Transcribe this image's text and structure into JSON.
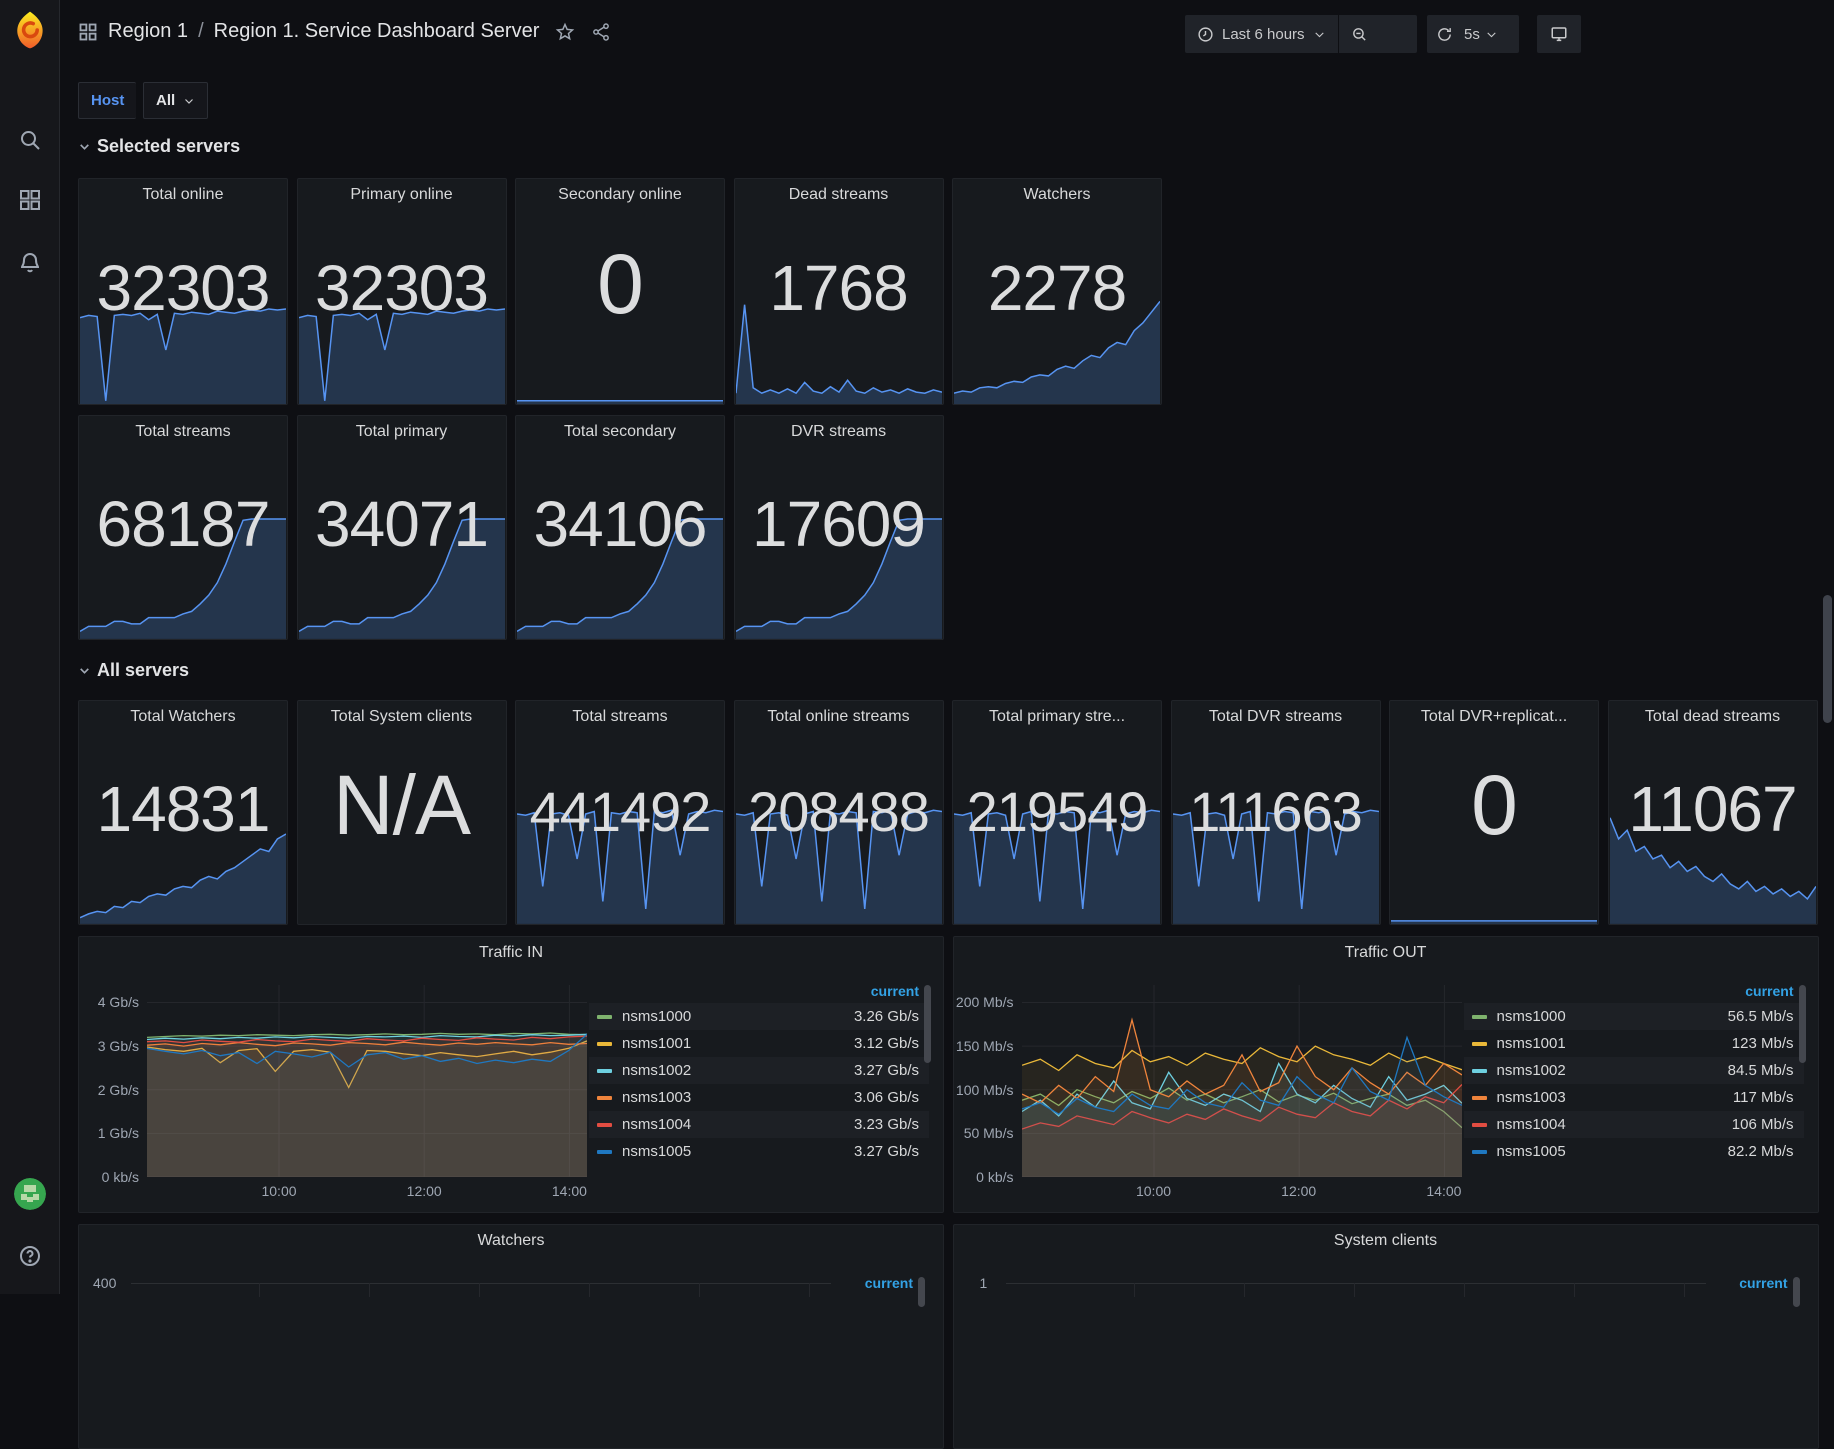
{
  "colors": {
    "accent_blue": "#5794f2",
    "legend_header_blue": "#33a2e5",
    "spark_line": "#5794f2",
    "avatar_green": "#36a64f"
  },
  "sidebar": {
    "items": [
      {
        "icon": "search"
      },
      {
        "icon": "dashboards"
      },
      {
        "icon": "alerting"
      }
    ]
  },
  "header": {
    "breadcrumb_folder": "Region 1",
    "breadcrumb_sep": "/",
    "breadcrumb_title": "Region 1. Service Dashboard Server",
    "time_range": "Last 6 hours",
    "refresh_interval": "5s"
  },
  "filters": {
    "host_label": "Host",
    "host_value": "All"
  },
  "sections": {
    "selected": "Selected servers",
    "all": "All servers"
  },
  "sparklines": {
    "plateau_dip": [
      0.8,
      0.82,
      0.81,
      0.03,
      0.82,
      0.83,
      0.82,
      0.84,
      0.78,
      0.83,
      0.5,
      0.84,
      0.83,
      0.85,
      0.84,
      0.83,
      0.86,
      0.85,
      0.84,
      0.86,
      0.87,
      0.86,
      0.88,
      0.87,
      0.88
    ],
    "flat_low": [
      0.03,
      0.03,
      0.03,
      0.03,
      0.03,
      0.03,
      0.03,
      0.03,
      0.03,
      0.03,
      0.03,
      0.03,
      0.03,
      0.03,
      0.03,
      0.03,
      0.03,
      0.03,
      0.03,
      0.03,
      0.03,
      0.03,
      0.03,
      0.03,
      0.03
    ],
    "spike_early": [
      0.1,
      0.92,
      0.15,
      0.1,
      0.13,
      0.1,
      0.14,
      0.1,
      0.2,
      0.12,
      0.1,
      0.16,
      0.11,
      0.22,
      0.12,
      0.1,
      0.15,
      0.11,
      0.13,
      0.1,
      0.14,
      0.11,
      0.1,
      0.13,
      0.11
    ],
    "rise": [
      0.1,
      0.12,
      0.11,
      0.15,
      0.16,
      0.15,
      0.19,
      0.21,
      0.2,
      0.25,
      0.27,
      0.26,
      0.32,
      0.35,
      0.33,
      0.4,
      0.45,
      0.43,
      0.52,
      0.57,
      0.55,
      0.68,
      0.75,
      0.85,
      0.95
    ],
    "staircase": [
      0.06,
      0.1,
      0.1,
      0.1,
      0.14,
      0.14,
      0.12,
      0.12,
      0.17,
      0.17,
      0.17,
      0.17,
      0.2,
      0.22,
      0.28,
      0.35,
      0.45,
      0.6,
      0.78,
      0.95,
      0.96,
      0.96,
      0.96,
      0.96,
      0.96
    ],
    "rise_noisy": [
      0.05,
      0.08,
      0.1,
      0.09,
      0.14,
      0.13,
      0.18,
      0.17,
      0.22,
      0.24,
      0.23,
      0.28,
      0.3,
      0.29,
      0.35,
      0.38,
      0.36,
      0.42,
      0.45,
      0.5,
      0.55,
      0.6,
      0.58,
      0.68,
      0.72
    ],
    "plateau_spikes": [
      0.88,
      0.87,
      0.89,
      0.3,
      0.88,
      0.89,
      0.87,
      0.52,
      0.88,
      0.9,
      0.18,
      0.89,
      0.88,
      0.9,
      0.89,
      0.12,
      0.9,
      0.89,
      0.91,
      0.55,
      0.88,
      0.9,
      0.89,
      0.91,
      0.9
    ],
    "decline": [
      0.85,
      0.68,
      0.75,
      0.58,
      0.62,
      0.52,
      0.55,
      0.45,
      0.5,
      0.42,
      0.46,
      0.38,
      0.34,
      0.4,
      0.32,
      0.28,
      0.34,
      0.26,
      0.3,
      0.24,
      0.28,
      0.22,
      0.26,
      0.2,
      0.3
    ]
  },
  "stats": {
    "selected_row1": [
      {
        "title": "Total online",
        "value": "32303"
      },
      {
        "title": "Primary online",
        "value": "32303"
      },
      {
        "title": "Secondary online",
        "value": "0"
      },
      {
        "title": "Dead streams",
        "value": "1768"
      },
      {
        "title": "Watchers",
        "value": "2278"
      }
    ],
    "selected_row2": [
      {
        "title": "Total streams",
        "value": "68187"
      },
      {
        "title": "Total primary",
        "value": "34071"
      },
      {
        "title": "Total secondary",
        "value": "34106"
      },
      {
        "title": "DVR streams",
        "value": "17609"
      }
    ],
    "all_row": [
      {
        "title": "Total Watchers",
        "value": "14831"
      },
      {
        "title": "Total System clients",
        "value": "N/A"
      },
      {
        "title": "Total streams",
        "value": "441492"
      },
      {
        "title": "Total online streams",
        "value": "208488"
      },
      {
        "title": "Total primary stre...",
        "value": "219549"
      },
      {
        "title": "Total DVR streams",
        "value": "111663"
      },
      {
        "title": "Total DVR+replicat...",
        "value": "0"
      },
      {
        "title": "Total dead streams",
        "value": "11067"
      }
    ]
  },
  "chart_data": [
    {
      "type": "line",
      "title": "Traffic IN",
      "legend_header": "current",
      "ylim": [
        0,
        4.4
      ],
      "y_ticks": [
        {
          "label": "4 Gb/s",
          "v": 4
        },
        {
          "label": "3 Gb/s",
          "v": 3
        },
        {
          "label": "2 Gb/s",
          "v": 2
        },
        {
          "label": "1 Gb/s",
          "v": 1
        },
        {
          "label": "0 kb/s",
          "v": 0
        }
      ],
      "x_ticks": [
        "10:00",
        "12:00",
        "14:00"
      ],
      "x_tick_pos": [
        0.3,
        0.63,
        0.96
      ],
      "series": [
        {
          "name": "nsms1000",
          "color": "#7EB26D",
          "current": "3.26 Gb/s",
          "values": [
            3.2,
            3.22,
            3.24,
            3.23,
            3.25,
            3.24,
            3.26,
            3.25,
            3.24,
            3.26,
            3.27,
            3.25,
            3.26,
            3.28,
            3.26,
            3.27,
            3.29,
            3.27,
            3.28,
            3.26,
            3.29,
            3.28,
            3.3,
            3.27,
            3.26
          ]
        },
        {
          "name": "nsms1001",
          "color": "#EAB839",
          "current": "3.12 Gb/s",
          "values": [
            2.98,
            2.92,
            2.88,
            2.95,
            2.62,
            2.9,
            2.94,
            2.42,
            2.88,
            2.92,
            2.86,
            2.05,
            2.9,
            2.88,
            2.82,
            2.78,
            2.85,
            2.8,
            2.76,
            2.82,
            2.88,
            2.8,
            2.86,
            2.95,
            3.12
          ]
        },
        {
          "name": "nsms1002",
          "color": "#6ED0E0",
          "current": "3.27 Gb/s",
          "values": [
            3.15,
            3.18,
            3.16,
            3.19,
            3.17,
            3.2,
            3.18,
            3.21,
            3.19,
            3.22,
            3.2,
            3.18,
            3.22,
            3.21,
            3.23,
            3.2,
            3.24,
            3.22,
            3.21,
            3.25,
            3.23,
            3.26,
            3.24,
            3.25,
            3.27
          ]
        },
        {
          "name": "nsms1003",
          "color": "#EF843C",
          "current": "3.06 Gb/s",
          "values": [
            3.02,
            3.05,
            3.0,
            3.06,
            3.03,
            3.08,
            3.04,
            3.01,
            3.07,
            3.05,
            3.02,
            3.08,
            3.06,
            3.03,
            3.09,
            3.05,
            3.02,
            3.07,
            3.04,
            3.08,
            3.05,
            3.03,
            3.08,
            3.04,
            3.06
          ]
        },
        {
          "name": "nsms1004",
          "color": "#E24D42",
          "current": "3.23 Gb/s",
          "values": [
            3.1,
            3.12,
            3.08,
            3.14,
            3.11,
            3.09,
            3.15,
            3.12,
            3.1,
            3.16,
            3.13,
            3.11,
            3.17,
            3.14,
            3.12,
            3.18,
            3.15,
            3.13,
            3.19,
            3.16,
            3.14,
            3.2,
            3.17,
            3.21,
            3.23
          ]
        },
        {
          "name": "nsms1005",
          "color": "#1F78C1",
          "current": "3.27 Gb/s",
          "values": [
            2.95,
            2.88,
            2.82,
            2.9,
            2.78,
            2.85,
            2.6,
            2.88,
            2.82,
            2.75,
            2.86,
            2.52,
            2.8,
            2.85,
            2.7,
            2.78,
            2.65,
            2.72,
            2.6,
            2.68,
            2.62,
            2.7,
            2.65,
            2.9,
            3.27
          ]
        }
      ]
    },
    {
      "type": "line",
      "title": "Traffic OUT",
      "legend_header": "current",
      "ylim": [
        0,
        220
      ],
      "y_ticks": [
        {
          "label": "200 Mb/s",
          "v": 200
        },
        {
          "label": "150 Mb/s",
          "v": 150
        },
        {
          "label": "100 Mb/s",
          "v": 100
        },
        {
          "label": "50 Mb/s",
          "v": 50
        },
        {
          "label": "0 kb/s",
          "v": 0
        }
      ],
      "x_ticks": [
        "10:00",
        "12:00",
        "14:00"
      ],
      "x_tick_pos": [
        0.3,
        0.63,
        0.96
      ],
      "series": [
        {
          "name": "nsms1000",
          "color": "#7EB26D",
          "current": "56.5 Mb/s",
          "values": [
            88,
            95,
            82,
            100,
            92,
            85,
            98,
            90,
            102,
            88,
            95,
            85,
            92,
            100,
            86,
            94,
            88,
            96,
            84,
            90,
            95,
            82,
            88,
            75,
            56.5
          ]
        },
        {
          "name": "nsms1001",
          "color": "#EAB839",
          "current": "123 Mb/s",
          "values": [
            128,
            135,
            122,
            140,
            130,
            125,
            145,
            132,
            138,
            128,
            142,
            135,
            130,
            148,
            138,
            132,
            150,
            140,
            135,
            128,
            142,
            132,
            138,
            130,
            123
          ]
        },
        {
          "name": "nsms1002",
          "color": "#6ED0E0",
          "current": "84.5 Mb/s",
          "values": [
            75,
            88,
            70,
            95,
            80,
            110,
            85,
            78,
            120,
            90,
            82,
            95,
            88,
            75,
            130,
            95,
            85,
            105,
            90,
            80,
            115,
            88,
            95,
            105,
            84.5
          ]
        },
        {
          "name": "nsms1003",
          "color": "#EF843C",
          "current": "117 Mb/s",
          "values": [
            95,
            85,
            105,
            90,
            115,
            98,
            180,
            100,
            92,
            110,
            95,
            105,
            140,
            98,
            108,
            150,
            115,
            100,
            125,
            108,
            95,
            120,
            105,
            130,
            117
          ]
        },
        {
          "name": "nsms1004",
          "color": "#E24D42",
          "current": "106 Mb/s",
          "values": [
            55,
            62,
            58,
            70,
            65,
            60,
            75,
            68,
            62,
            72,
            66,
            78,
            70,
            64,
            80,
            72,
            68,
            85,
            75,
            70,
            88,
            78,
            92,
            85,
            106
          ]
        },
        {
          "name": "nsms1005",
          "color": "#1F78C1",
          "current": "82.2 Mb/s",
          "values": [
            78,
            85,
            72,
            90,
            80,
            75,
            95,
            82,
            78,
            100,
            85,
            80,
            108,
            88,
            82,
            115,
            95,
            85,
            125,
            98,
            88,
            160,
            105,
            92,
            82.2
          ]
        }
      ]
    }
  ],
  "bottom_panels": [
    {
      "title": "Watchers",
      "first_tick": "400",
      "legend_header": "current"
    },
    {
      "title": "System clients",
      "first_tick": "1",
      "legend_header": "current"
    }
  ]
}
